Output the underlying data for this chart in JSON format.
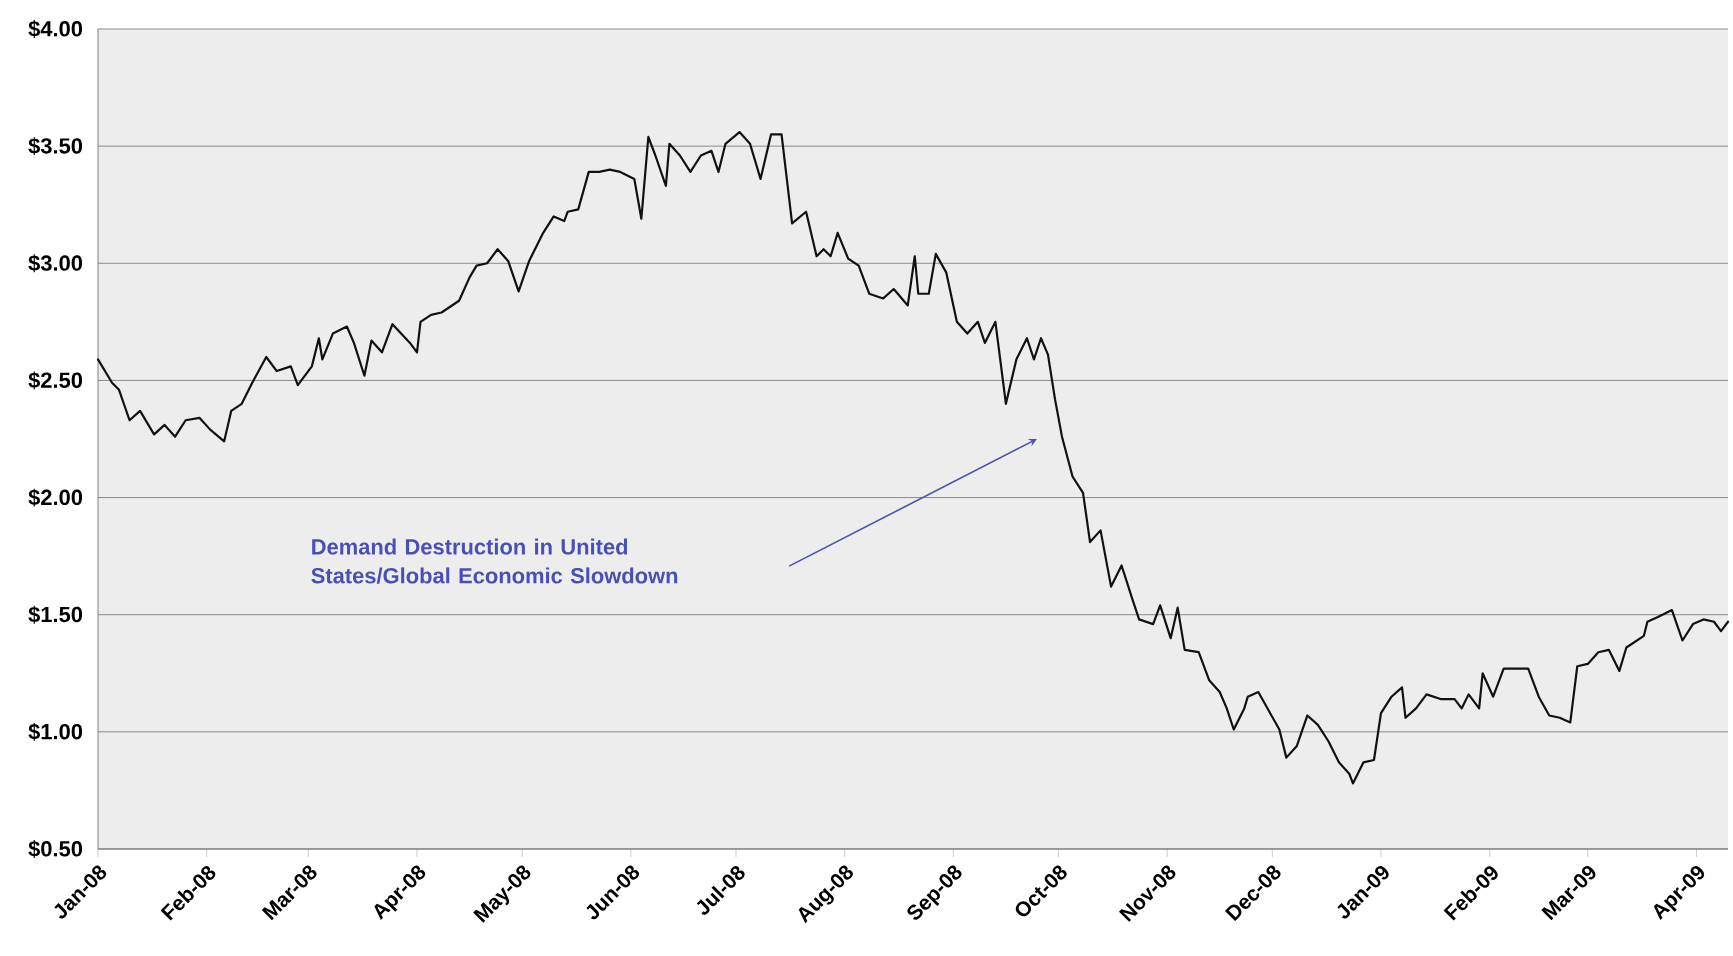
{
  "chart_data": {
    "type": "line",
    "annotations": [
      "Demand Destruction in United States/Global Economic Slowdown"
    ],
    "x": [
      "2008-01-01",
      "2008-01-05",
      "2008-01-07",
      "2008-01-10",
      "2008-01-13",
      "2008-01-17",
      "2008-01-20",
      "2008-01-23",
      "2008-01-26",
      "2008-01-30",
      "2008-02-02",
      "2008-02-06",
      "2008-02-08",
      "2008-02-11",
      "2008-02-14",
      "2008-02-18",
      "2008-02-21",
      "2008-02-25",
      "2008-02-27",
      "2008-03-02",
      "2008-03-04",
      "2008-03-05",
      "2008-03-08",
      "2008-03-12",
      "2008-03-14",
      "2008-03-17",
      "2008-03-19",
      "2008-03-22",
      "2008-03-25",
      "2008-03-30",
      "2008-04-01",
      "2008-04-02",
      "2008-04-05",
      "2008-04-08",
      "2008-04-13",
      "2008-04-16",
      "2008-04-18",
      "2008-04-21",
      "2008-04-24",
      "2008-04-27",
      "2008-04-30",
      "2008-05-03",
      "2008-05-07",
      "2008-05-10",
      "2008-05-13",
      "2008-05-14",
      "2008-05-17",
      "2008-05-20",
      "2008-05-23",
      "2008-05-26",
      "2008-05-29",
      "2008-06-02",
      "2008-06-04",
      "2008-06-06",
      "2008-06-08",
      "2008-06-11",
      "2008-06-12",
      "2008-06-15",
      "2008-06-18",
      "2008-06-21",
      "2008-06-24",
      "2008-06-26",
      "2008-06-28",
      "2008-07-02",
      "2008-07-05",
      "2008-07-08",
      "2008-07-11",
      "2008-07-14",
      "2008-07-17",
      "2008-07-21",
      "2008-07-24",
      "2008-07-26",
      "2008-07-28",
      "2008-07-30",
      "2008-08-02",
      "2008-08-05",
      "2008-08-08",
      "2008-08-12",
      "2008-08-15",
      "2008-08-19",
      "2008-08-21",
      "2008-08-22",
      "2008-08-25",
      "2008-08-27",
      "2008-08-30",
      "2008-09-02",
      "2008-09-05",
      "2008-09-08",
      "2008-09-10",
      "2008-09-13",
      "2008-09-16",
      "2008-09-19",
      "2008-09-22",
      "2008-09-24",
      "2008-09-26",
      "2008-09-28",
      "2008-09-30",
      "2008-10-02",
      "2008-10-05",
      "2008-10-08",
      "2008-10-10",
      "2008-10-13",
      "2008-10-16",
      "2008-10-19",
      "2008-10-22",
      "2008-10-24",
      "2008-10-28",
      "2008-10-30",
      "2008-11-02",
      "2008-11-04",
      "2008-11-06",
      "2008-11-10",
      "2008-11-13",
      "2008-11-16",
      "2008-11-18",
      "2008-11-20",
      "2008-11-23",
      "2008-11-24",
      "2008-11-27",
      "2008-11-30",
      "2008-12-03",
      "2008-12-05",
      "2008-12-08",
      "2008-12-11",
      "2008-12-14",
      "2008-12-17",
      "2008-12-20",
      "2008-12-23",
      "2008-12-24",
      "2008-12-27",
      "2008-12-30",
      "2009-01-01",
      "2009-01-04",
      "2009-01-07",
      "2009-01-08",
      "2009-01-11",
      "2009-01-14",
      "2009-01-18",
      "2009-01-22",
      "2009-01-24",
      "2009-01-26",
      "2009-01-29",
      "2009-01-30",
      "2009-02-02",
      "2009-02-05",
      "2009-02-09",
      "2009-02-12",
      "2009-02-15",
      "2009-02-18",
      "2009-02-21",
      "2009-02-24",
      "2009-02-26",
      "2009-03-01",
      "2009-03-04",
      "2009-03-07",
      "2009-03-10",
      "2009-03-12",
      "2009-03-17",
      "2009-03-18",
      "2009-03-21",
      "2009-03-25",
      "2009-03-28",
      "2009-03-31",
      "2009-04-03",
      "2009-04-06",
      "2009-04-08",
      "2009-04-10"
    ],
    "values": [
      2.59,
      2.49,
      2.46,
      2.33,
      2.37,
      2.27,
      2.31,
      2.26,
      2.33,
      2.34,
      2.29,
      2.24,
      2.37,
      2.4,
      2.49,
      2.6,
      2.54,
      2.56,
      2.48,
      2.56,
      2.68,
      2.59,
      2.7,
      2.73,
      2.66,
      2.52,
      2.67,
      2.62,
      2.74,
      2.66,
      2.62,
      2.75,
      2.78,
      2.79,
      2.84,
      2.94,
      2.99,
      3.0,
      3.06,
      3.01,
      2.88,
      3.01,
      3.13,
      3.2,
      3.18,
      3.22,
      3.23,
      3.39,
      3.39,
      3.4,
      3.39,
      3.36,
      3.19,
      3.54,
      3.46,
      3.33,
      3.51,
      3.46,
      3.39,
      3.46,
      3.48,
      3.39,
      3.51,
      3.56,
      3.51,
      3.36,
      3.55,
      3.55,
      3.17,
      3.22,
      3.03,
      3.06,
      3.03,
      3.13,
      3.02,
      2.99,
      2.87,
      2.85,
      2.89,
      2.82,
      3.03,
      2.87,
      2.87,
      3.04,
      2.96,
      2.75,
      2.7,
      2.75,
      2.66,
      2.75,
      2.4,
      2.59,
      2.68,
      2.59,
      2.68,
      2.61,
      2.42,
      2.26,
      2.09,
      2.02,
      1.81,
      1.86,
      1.62,
      1.71,
      1.57,
      1.48,
      1.46,
      1.54,
      1.4,
      1.53,
      1.35,
      1.34,
      1.22,
      1.17,
      1.1,
      1.01,
      1.1,
      1.15,
      1.17,
      1.09,
      1.01,
      0.89,
      0.94,
      1.07,
      1.03,
      0.96,
      0.87,
      0.82,
      0.78,
      0.87,
      0.88,
      1.08,
      1.15,
      1.19,
      1.06,
      1.1,
      1.16,
      1.14,
      1.14,
      1.1,
      1.16,
      1.1,
      1.25,
      1.15,
      1.27,
      1.27,
      1.27,
      1.15,
      1.07,
      1.06,
      1.04,
      1.28,
      1.29,
      1.34,
      1.35,
      1.26,
      1.36,
      1.41,
      1.47,
      1.49,
      1.52,
      1.39,
      1.46,
      1.48,
      1.47,
      1.43,
      1.47
    ],
    "color": "#111111",
    "xlim": [
      "2008-01-01",
      "2009-04-10"
    ],
    "xticks": [
      {
        "value": "2008-01-01",
        "label": "Jan-08"
      },
      {
        "value": "2008-02-01",
        "label": "Feb-08"
      },
      {
        "value": "2008-03-01",
        "label": "Mar-08"
      },
      {
        "value": "2008-04-01",
        "label": "Apr-08"
      },
      {
        "value": "2008-05-01",
        "label": "May-08"
      },
      {
        "value": "2008-06-01",
        "label": "Jun-08"
      },
      {
        "value": "2008-07-01",
        "label": "Jul-08"
      },
      {
        "value": "2008-08-01",
        "label": "Aug-08"
      },
      {
        "value": "2008-09-01",
        "label": "Sep-08"
      },
      {
        "value": "2008-10-01",
        "label": "Oct-08"
      },
      {
        "value": "2008-11-01",
        "label": "Nov-08"
      },
      {
        "value": "2008-12-01",
        "label": "Dec-08"
      },
      {
        "value": "2009-01-01",
        "label": "Jan-09"
      },
      {
        "value": "2009-02-01",
        "label": "Feb-09"
      },
      {
        "value": "2009-03-01",
        "label": "Mar-09"
      },
      {
        "value": "2009-04-01",
        "label": "Apr-09"
      }
    ],
    "ylim": [
      0.5,
      4.0
    ],
    "yticks": [
      {
        "value": 0.5,
        "label": "$0.50"
      },
      {
        "value": 1.0,
        "label": "$1.00"
      },
      {
        "value": 1.5,
        "label": "$1.50"
      },
      {
        "value": 2.0,
        "label": "$2.00"
      },
      {
        "value": 2.5,
        "label": "$2.50"
      },
      {
        "value": 3.0,
        "label": "$3.00"
      },
      {
        "value": 3.5,
        "label": "$3.50"
      },
      {
        "value": 4.0,
        "label": "$4.00"
      }
    ],
    "grid": "y"
  }
}
